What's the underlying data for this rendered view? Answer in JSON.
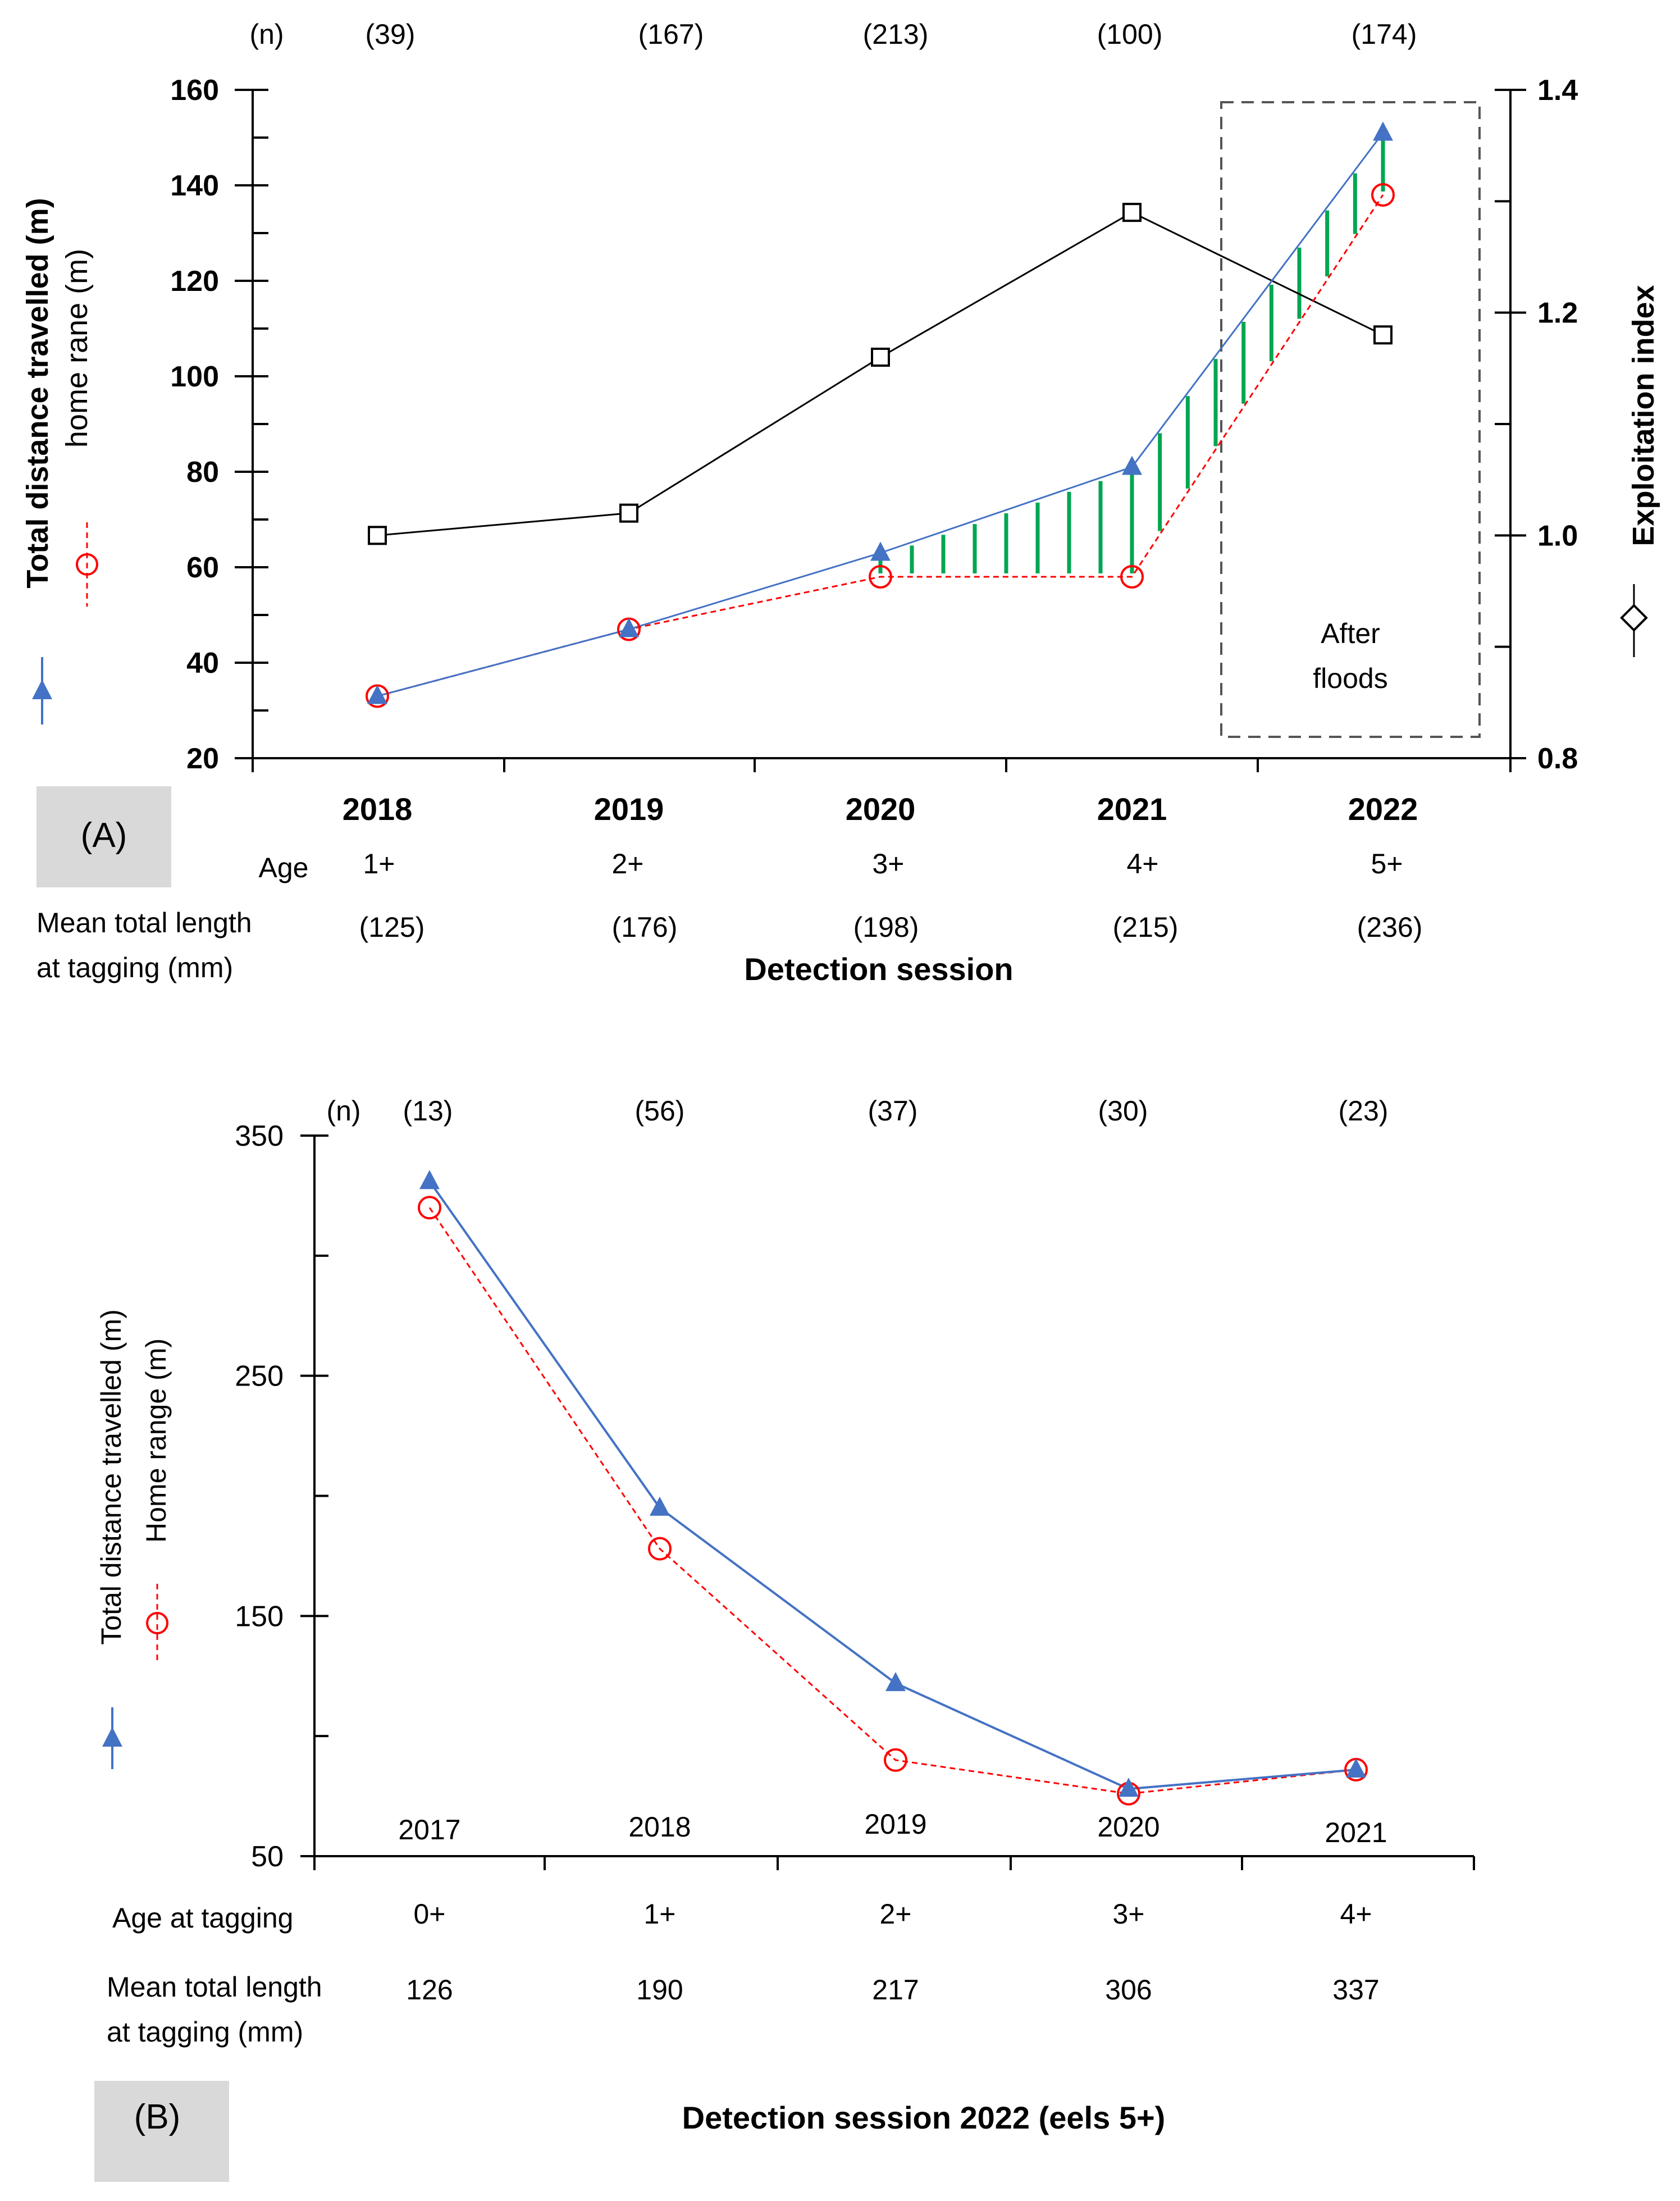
{
  "chart_data": [
    {
      "panel": "(A)",
      "type": "line",
      "categories": [
        "2018",
        "2019",
        "2020",
        "2021",
        "2022"
      ],
      "n_label": "(n)",
      "n_values": [
        "(39)",
        "(167)",
        "(213)",
        "(100)",
        "(174)"
      ],
      "age_label": "Age",
      "ages": [
        "1+",
        "2+",
        "3+",
        "4+",
        "5+"
      ],
      "length_label_line1": "Mean total length",
      "length_label_line2": "at tagging (mm)",
      "lengths": [
        "(125)",
        "(176)",
        "(198)",
        "(215)",
        "(236)"
      ],
      "xlabel": "Detection session",
      "ylabel_left_1": "Total distance travelled (m)",
      "ylabel_left_2": "home rane (m)",
      "ylabel_right": "Exploitation index",
      "ylim_left": [
        20,
        160
      ],
      "yticks_left": [
        "20",
        "40",
        "60",
        "80",
        "100",
        "120",
        "140",
        "160"
      ],
      "ylim_right": [
        0.8,
        1.4
      ],
      "yticks_right": [
        "0.8",
        "1.0",
        "1.2",
        "1.4"
      ],
      "annotation_line1": "After",
      "annotation_line2": "floods",
      "series": [
        {
          "name": "Total distance travelled (m)",
          "axis": "left",
          "color": "#4472c4",
          "marker": "triangle",
          "values": [
            33,
            47,
            63,
            81,
            151
          ]
        },
        {
          "name": "Home range (m)",
          "axis": "left",
          "color": "#ff0000",
          "marker": "circle",
          "style": "dashed",
          "values": [
            33,
            47,
            58,
            58,
            138
          ]
        },
        {
          "name": "Exploitation index",
          "axis": "right",
          "color": "#000000",
          "marker": "square",
          "values": [
            1.0,
            1.02,
            1.16,
            1.29,
            1.18
          ]
        }
      ],
      "hatch_color": "#00a651"
    },
    {
      "panel": "(B)",
      "type": "line",
      "categories": [
        "2017",
        "2018",
        "2019",
        "2020",
        "2021"
      ],
      "n_label": "(n)",
      "n_values": [
        "(13)",
        "(56)",
        "(37)",
        "(30)",
        "(23)"
      ],
      "age_label": "Age at tagging",
      "ages": [
        "0+",
        "1+",
        "2+",
        "3+",
        "4+"
      ],
      "length_label_line1": "Mean total length",
      "length_label_line2": "at tagging (mm)",
      "lengths": [
        "126",
        "190",
        "217",
        "306",
        "337"
      ],
      "xlabel": "Detection session 2022 (eels 5+)",
      "ylabel_1": "Total distance travelled (m)",
      "ylabel_2": "Home range (m)",
      "ylim": [
        50,
        350
      ],
      "yticks": [
        "50",
        "150",
        "250",
        "350"
      ],
      "series": [
        {
          "name": "Total distance travelled (m)",
          "color": "#4472c4",
          "marker": "triangle",
          "values": [
            331,
            195,
            122,
            78,
            86
          ]
        },
        {
          "name": "Home range (m)",
          "color": "#ff0000",
          "marker": "circle",
          "style": "dashed",
          "values": [
            320,
            178,
            90,
            76,
            86
          ]
        }
      ]
    }
  ]
}
